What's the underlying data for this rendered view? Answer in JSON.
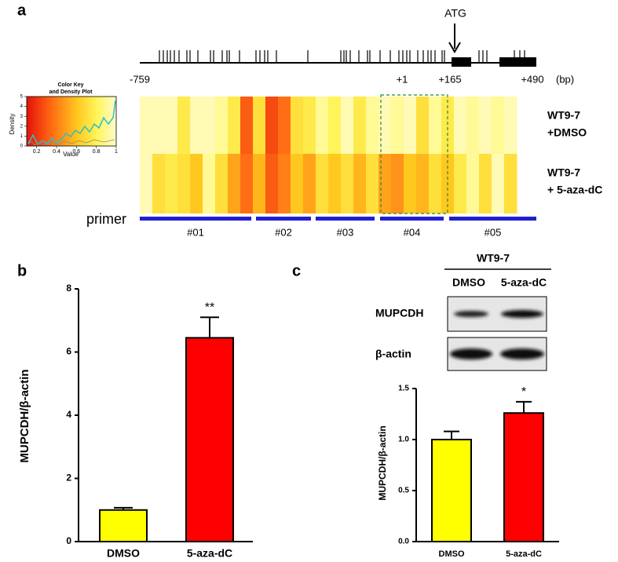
{
  "panel_labels": [
    "a",
    "b",
    "c"
  ],
  "gene_map": {
    "marker": "ATG",
    "position_labels": [
      "-759",
      "+1",
      "+165",
      "+490"
    ],
    "unit": "(bp)"
  },
  "color_key": {
    "title": [
      "Color Key",
      "and Density Plot"
    ],
    "xlabel": "Value",
    "ylabel": "Density",
    "xlim": [
      0.1,
      1
    ],
    "xticks": [
      0.2,
      0.4,
      0.6,
      0.8,
      1
    ],
    "ylim": [
      0,
      5
    ],
    "yticks": [
      0,
      1,
      2,
      3,
      4,
      5
    ]
  },
  "heatmap": {
    "rows": [
      {
        "label": [
          "WT9-7",
          "+DMSO"
        ],
        "values": [
          0.95,
          0.95,
          0.95,
          0.75,
          0.95,
          0.95,
          0.9,
          0.75,
          0.3,
          0.7,
          0.25,
          0.35,
          0.7,
          0.75,
          0.9,
          0.8,
          0.95,
          0.75,
          0.9,
          0.95,
          0.9,
          0.95,
          0.7,
          0.9,
          0.75,
          0.95,
          0.9,
          0.95,
          0.9,
          0.95
        ]
      },
      {
        "label": [
          "WT9-7",
          "+ 5-aza-dC"
        ],
        "values": [
          0.95,
          0.7,
          0.75,
          0.7,
          0.6,
          0.9,
          0.7,
          0.5,
          0.35,
          0.55,
          0.3,
          0.4,
          0.6,
          0.5,
          0.7,
          0.6,
          0.7,
          0.55,
          0.7,
          0.5,
          0.45,
          0.6,
          0.55,
          0.7,
          0.6,
          0.75,
          0.9,
          0.7,
          0.95,
          0.7
        ]
      }
    ]
  },
  "primers": {
    "label": "primer",
    "names": [
      "#01",
      "#02",
      "#03",
      "#04",
      "#05"
    ],
    "color": "#2020d0"
  },
  "blot": {
    "group": "WT9-7",
    "lanes": [
      "DMSO",
      "5-aza-dC"
    ],
    "proteins": [
      "MUPCDH",
      "β-actin"
    ]
  },
  "chart_data": [
    {
      "type": "bar",
      "ylabel": "MUPCDH/β-actin",
      "categories": [
        "DMSO",
        "5-aza-dC"
      ],
      "values": [
        1.0,
        6.45
      ],
      "errors": [
        0.07,
        0.65
      ],
      "colors": [
        "#ffff00",
        "#ff0000"
      ],
      "annotations": [
        null,
        "**"
      ],
      "ylim": [
        0,
        8
      ],
      "yticks": [
        0,
        2,
        4,
        6,
        8
      ]
    },
    {
      "type": "bar",
      "ylabel": "MUPCDH/β-actin",
      "categories": [
        "DMSO",
        "5-aza-dC"
      ],
      "values": [
        1.0,
        1.26
      ],
      "errors": [
        0.08,
        0.11
      ],
      "colors": [
        "#ffff00",
        "#ff0000"
      ],
      "annotations": [
        null,
        "*"
      ],
      "ylim": [
        0,
        1.5
      ],
      "yticks": [
        {
          "value": 0,
          "label": "0.0"
        },
        {
          "value": 0.5,
          "label": "0.5"
        },
        {
          "value": 1,
          "label": "1.0"
        },
        {
          "value": 1.5,
          "label": "1.5"
        }
      ]
    }
  ]
}
